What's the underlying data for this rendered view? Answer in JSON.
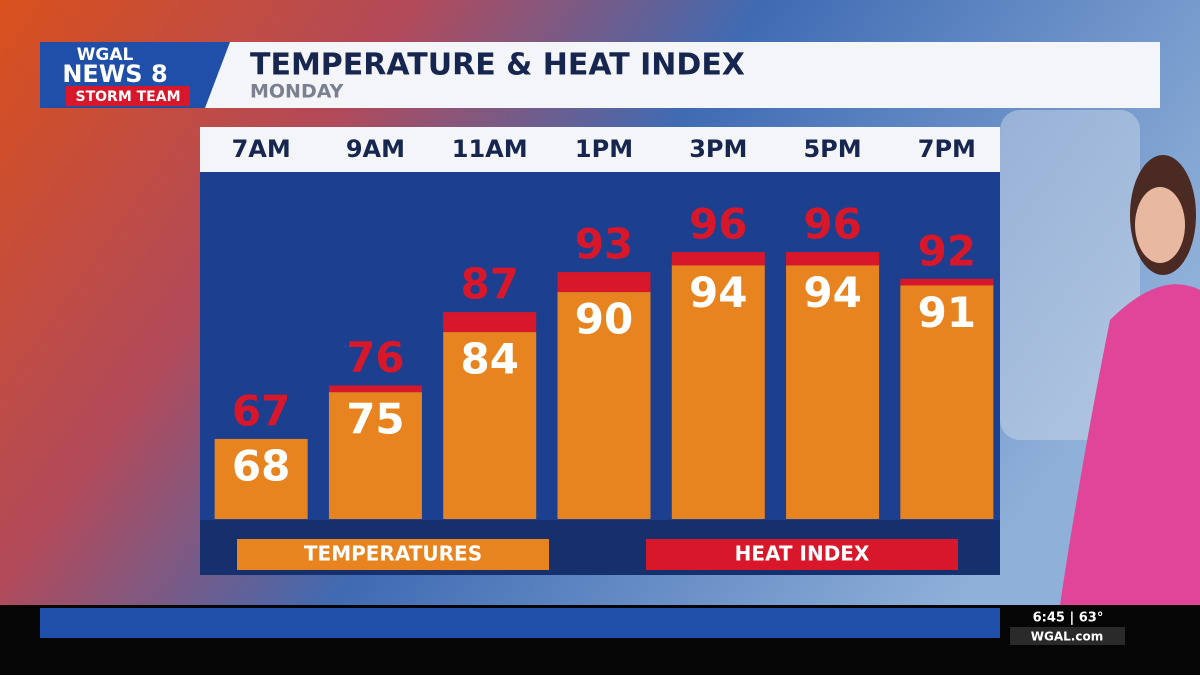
{
  "broadcast": {
    "logo_top": "WGAL",
    "logo_news": "NEWS 8",
    "logo_team": "STORM TEAM",
    "ticker_time": "6:45 | 63°",
    "ticker_site": "WGAL.com"
  },
  "chart_data": {
    "type": "bar",
    "title": "TEMPERATURE & HEAT INDEX",
    "subtitle": "MONDAY",
    "categories": [
      "7AM",
      "9AM",
      "11AM",
      "1PM",
      "3PM",
      "5PM",
      "7PM"
    ],
    "series": [
      {
        "name": "TEMPERATURES",
        "color": "#e8841f",
        "values": [
          68,
          75,
          84,
          90,
          94,
          94,
          91
        ]
      },
      {
        "name": "HEAT INDEX",
        "color": "#d8172b",
        "values": [
          67,
          76,
          87,
          93,
          96,
          96,
          92
        ]
      }
    ],
    "ylim": [
      56,
      108
    ]
  }
}
